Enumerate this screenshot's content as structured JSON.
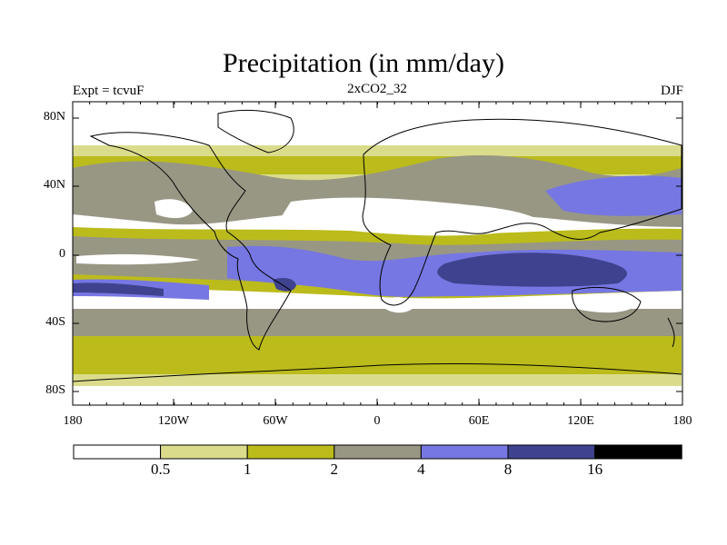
{
  "title": "Precipitation (in mm/day)",
  "subtitle_left": "Expt = tcvuF",
  "subtitle_center": "2xCO2_32",
  "subtitle_right": "DJF",
  "lat_labels": [
    "80N",
    "40N",
    "0",
    "40S",
    "80S"
  ],
  "lon_labels": [
    "180",
    "120W",
    "60W",
    "0",
    "60E",
    "120E",
    "180"
  ],
  "colorbar": {
    "thresholds": [
      "0.5",
      "1",
      "2",
      "4",
      "8",
      "16"
    ],
    "colors": [
      "#ffffff",
      "#dadc8c",
      "#bbbb1c",
      "#989784",
      "#7677e2",
      "#3f428e",
      "#000000"
    ]
  }
}
